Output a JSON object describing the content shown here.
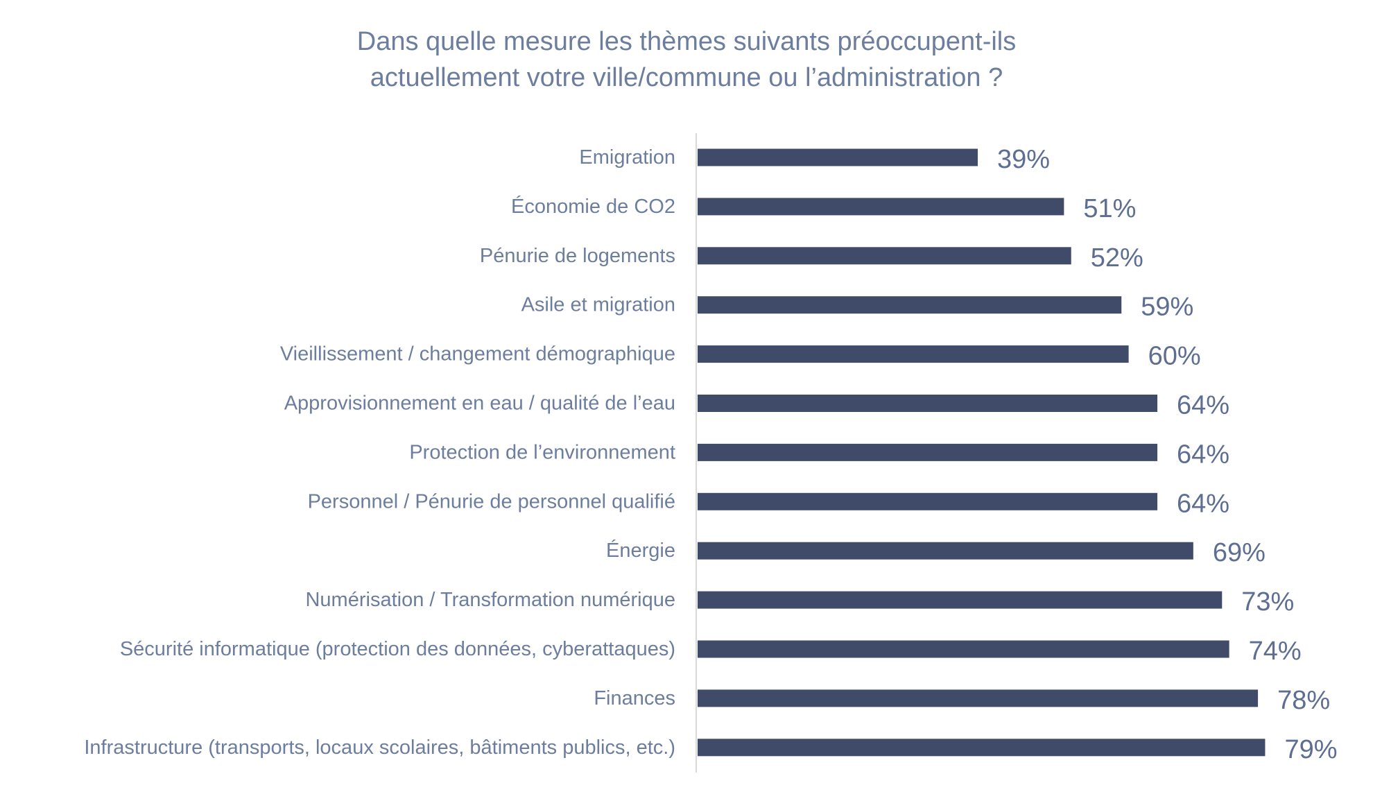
{
  "chart_data": {
    "type": "bar",
    "orientation": "horizontal",
    "title": "Dans quelle mesure les thèmes suivants préoccupent-ils actuellement votre ville/commune ou l’administration ?",
    "title_lines": [
      "Dans quelle mesure les thèmes suivants préoccupent-ils",
      "actuellement votre ville/commune ou l’administration ?"
    ],
    "categories": [
      "Emigration",
      "Économie de CO2",
      "Pénurie de logements",
      "Asile et migration",
      "Vieillissement / changement démographique",
      "Approvisionnement en eau / qualité de l’eau",
      "Protection de l’environnement",
      "Personnel / Pénurie de personnel qualifié",
      "Énergie",
      "Numérisation / Transformation numérique",
      "Sécurité informatique (protection des données, cyberattaques)",
      "Finances",
      "Infrastructure (transports, locaux scolaires, bâtiments publics, etc.)"
    ],
    "values": [
      39,
      51,
      52,
      59,
      60,
      64,
      64,
      64,
      69,
      73,
      74,
      78,
      79
    ],
    "value_labels": [
      "39%",
      "51%",
      "52%",
      "59%",
      "60%",
      "64%",
      "64%",
      "64%",
      "69%",
      "73%",
      "74%",
      "78%",
      "79%"
    ],
    "unit": "%",
    "xlim": [
      0,
      100
    ],
    "grid": false,
    "legend": "none",
    "colors": {
      "bar": "#3f4b68",
      "category_label": "#6c7d9e",
      "value_label": "#5e6e92",
      "title": "#6c7d9e",
      "axis_line": "#d9d9d9"
    }
  }
}
